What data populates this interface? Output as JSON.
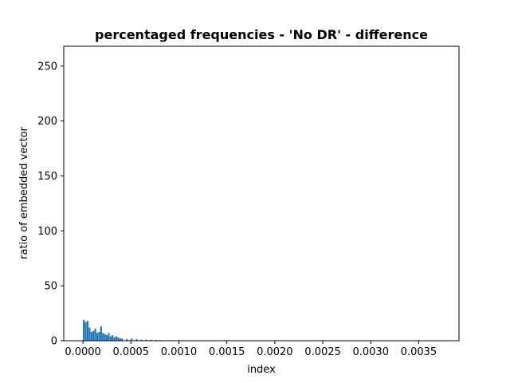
{
  "chart_data": {
    "type": "bar",
    "title": "percentaged frequencies - 'No DR' - difference",
    "xlabel": "index",
    "ylabel": "ratio of embedded vector",
    "xlim": [
      -0.0002,
      0.00392
    ],
    "ylim": [
      0,
      268
    ],
    "xticks": [
      0.0,
      0.0005,
      0.001,
      0.0015,
      0.002,
      0.0025,
      0.003,
      0.0035
    ],
    "xtick_labels": [
      "0.0000",
      "0.0005",
      "0.0010",
      "0.0015",
      "0.0020",
      "0.0025",
      "0.0030",
      "0.0035"
    ],
    "yticks": [
      0,
      50,
      100,
      150,
      200,
      250
    ],
    "ytick_labels": [
      "0",
      "50",
      "100",
      "150",
      "200",
      "250"
    ],
    "grid": false,
    "bar_color": "#1f77b4",
    "bars": {
      "x": [
        0.0,
        2e-05,
        4e-05,
        6e-05,
        8e-05,
        0.0001,
        0.00012,
        0.00014,
        0.00016,
        0.00018,
        0.0002,
        0.00022,
        0.00024,
        0.00026,
        0.00028,
        0.0003,
        0.00032,
        0.00034,
        0.00036,
        0.00038,
        0.0004,
        0.00045,
        0.0005,
        0.00055,
        0.0006,
        0.00065,
        0.0007,
        0.00075,
        0.0008,
        0.0009,
        0.001,
        0.0011,
        0.0012,
        0.0013,
        0.0014,
        0.0015,
        0.0016,
        0.0017,
        0.0018,
        0.002,
        0.0022,
        0.0024,
        0.0026,
        0.0028,
        0.003,
        0.0032,
        0.0034,
        0.0036
      ],
      "y": [
        19,
        17,
        18,
        12,
        8,
        9,
        11,
        7,
        8,
        13,
        7,
        6,
        5,
        7,
        4,
        5,
        3,
        4,
        3,
        2,
        2,
        1.5,
        2,
        1.5,
        1,
        1,
        0.8,
        0.8,
        0.6,
        0.5,
        0.5,
        0.4,
        0.4,
        0.3,
        0.3,
        0.3,
        0.2,
        0.2,
        0.2,
        0.15,
        0.15,
        0.1,
        0.1,
        0.1,
        0.1,
        0.1,
        0.1,
        0.1
      ],
      "width": 1.8e-05
    }
  }
}
